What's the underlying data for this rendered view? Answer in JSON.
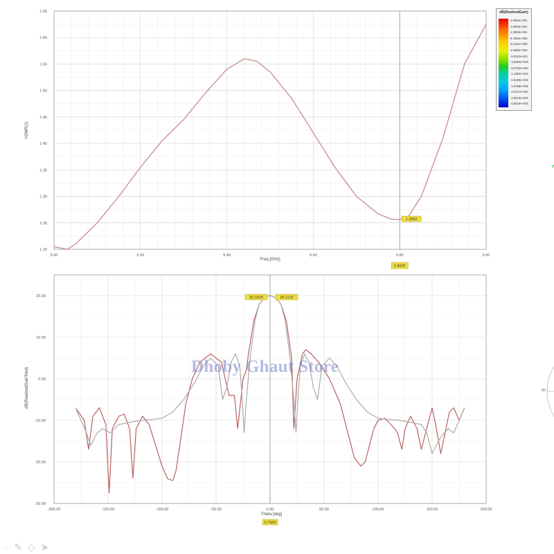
{
  "chart_data": [
    {
      "type": "line",
      "ylabel": "VSWR(1)",
      "xlabel": "Freq [GHz]",
      "xlim": [
        5.0,
        6.0
      ],
      "ylim": [
        1.2,
        1.65
      ],
      "xticks": [
        "5.00",
        "5.20",
        "5.40",
        "5.60",
        "5.80",
        "6.00"
      ],
      "yticks": [
        "1.20",
        "1.25",
        "1.30",
        "1.35",
        "1.40",
        "1.45",
        "1.50",
        "1.55",
        "1.60",
        "1.65"
      ],
      "grid": true,
      "series": [
        {
          "color": "#c98a8a",
          "x": [
            5.0,
            5.03,
            5.05,
            5.1,
            5.15,
            5.2,
            5.25,
            5.3,
            5.35,
            5.4,
            5.44,
            5.47,
            5.5,
            5.55,
            5.6,
            5.65,
            5.7,
            5.75,
            5.78,
            5.8,
            5.82,
            5.85,
            5.9,
            5.95,
            6.0
          ],
          "y": [
            1.205,
            1.2,
            1.21,
            1.25,
            1.3,
            1.355,
            1.405,
            1.445,
            1.495,
            1.54,
            1.56,
            1.555,
            1.535,
            1.485,
            1.42,
            1.355,
            1.3,
            1.267,
            1.257,
            1.256,
            1.262,
            1.3,
            1.41,
            1.55,
            1.625
          ]
        }
      ],
      "marker": {
        "x": 5.8,
        "y": 1.2562,
        "label": "1.2562",
        "x_label": "5.8000"
      }
    },
    {
      "type": "line",
      "ylabel": "dB(RealizedGainTotal)",
      "xlabel": "Theta [deg]",
      "xlim": [
        -200,
        200
      ],
      "ylim": [
        -30,
        25
      ],
      "xticks": [
        "-200.00",
        "-150.00",
        "-100.00",
        "-50.00",
        "0.00",
        "50.00",
        "100.00",
        "150.00",
        "200.00"
      ],
      "yticks": [
        "20.00",
        "10.00",
        "0.00",
        "-10.00",
        "-20.00",
        "-30.00"
      ],
      "grid": true,
      "series": [
        {
          "color": "#b86060",
          "x": [
            -180,
            -172,
            -168,
            -164,
            -158,
            -152,
            -149,
            -146,
            -140,
            -135,
            -130,
            -127,
            -124,
            -118,
            -112,
            -106,
            -100,
            -95,
            -90,
            -87,
            -83,
            -78,
            -72,
            -65,
            -55,
            -45,
            -38,
            -33,
            -30,
            -25,
            -22,
            -20,
            -15,
            -10,
            -5,
            0,
            5,
            10,
            15,
            20,
            22,
            25,
            30,
            33,
            38,
            45,
            55,
            65,
            72,
            78,
            84,
            88,
            92,
            96,
            100,
            106,
            112,
            118,
            122,
            125,
            130,
            136,
            140,
            145,
            150,
            154,
            158,
            162,
            166,
            170,
            175,
            180
          ],
          "y": [
            -7,
            -10,
            -17,
            -9,
            -7,
            -11,
            -27.5,
            -12,
            -9,
            -8.5,
            -12,
            -24,
            -12,
            -9,
            -11,
            -16,
            -21,
            -24,
            -24.5,
            -22,
            -15,
            -6,
            0,
            4,
            6,
            4,
            -4,
            -4,
            -12,
            0,
            2,
            6,
            14,
            18,
            19.5,
            20.1,
            19.5,
            18,
            14,
            5,
            -12,
            0,
            6,
            7,
            6,
            4,
            0,
            -6,
            -13,
            -19,
            -21,
            -20,
            -16,
            -12,
            -10,
            -9.5,
            -11,
            -13,
            -17,
            -12,
            -9,
            -12,
            -17,
            -12,
            -7,
            -12,
            -18,
            -13,
            -8,
            -7,
            -10,
            -7
          ]
        },
        {
          "color": "#aaaaaa",
          "x": [
            -180,
            -170,
            -166,
            -160,
            -155,
            -148,
            -140,
            -130,
            -120,
            -110,
            -100,
            -90,
            -80,
            -70,
            -62,
            -55,
            -48,
            -44,
            -40,
            -36,
            -32,
            -28,
            -26,
            -24,
            -22,
            -18,
            -14,
            -10,
            -5,
            0,
            5,
            10,
            14,
            18,
            22,
            24,
            26,
            28,
            32,
            36,
            40,
            44,
            48,
            55,
            62,
            70,
            80,
            90,
            100,
            110,
            120,
            130,
            140,
            145,
            150,
            158,
            165,
            170,
            175,
            180
          ],
          "y": [
            -7,
            -13,
            -16,
            -13,
            -12,
            -13,
            -11,
            -10.5,
            -10,
            -9.8,
            -9.5,
            -8,
            -5,
            -1,
            3,
            5,
            3,
            -5,
            -2,
            4,
            6,
            3,
            -4,
            -13,
            -5,
            6,
            14,
            18,
            19.5,
            20.1,
            19.5,
            18,
            14,
            6,
            -5,
            -13,
            -4,
            3,
            6,
            4,
            -2,
            -5,
            3,
            5,
            3,
            -1,
            -5,
            -8,
            -9.5,
            -9.8,
            -10,
            -10.5,
            -11,
            -13,
            -18,
            -14,
            -12,
            -13,
            -10,
            -7
          ]
        }
      ],
      "peak_labels": [
        "20.1024",
        "20.1132"
      ],
      "cursor": {
        "x": 0,
        "label": "0.7500"
      }
    }
  ],
  "legend": {
    "title": "dB(RealizedGain)",
    "entries": [
      "2.0506e+001",
      "1.6933e+001",
      "1.3360e+001",
      "9.7862e+000",
      "6.2131e+000",
      "2.6400e+000",
      "-9.3312e-001",
      "-4.5062e+000",
      "-8.0793e+000",
      "-1.1652e+001",
      "-1.5225e+001",
      "-1.8798e+001",
      "-2.2371e+001",
      "-2.5944e+001",
      "-2.9518e+001"
    ]
  },
  "watermark": "Dhoby Ghaut Store",
  "polar_tick_label": "-60"
}
